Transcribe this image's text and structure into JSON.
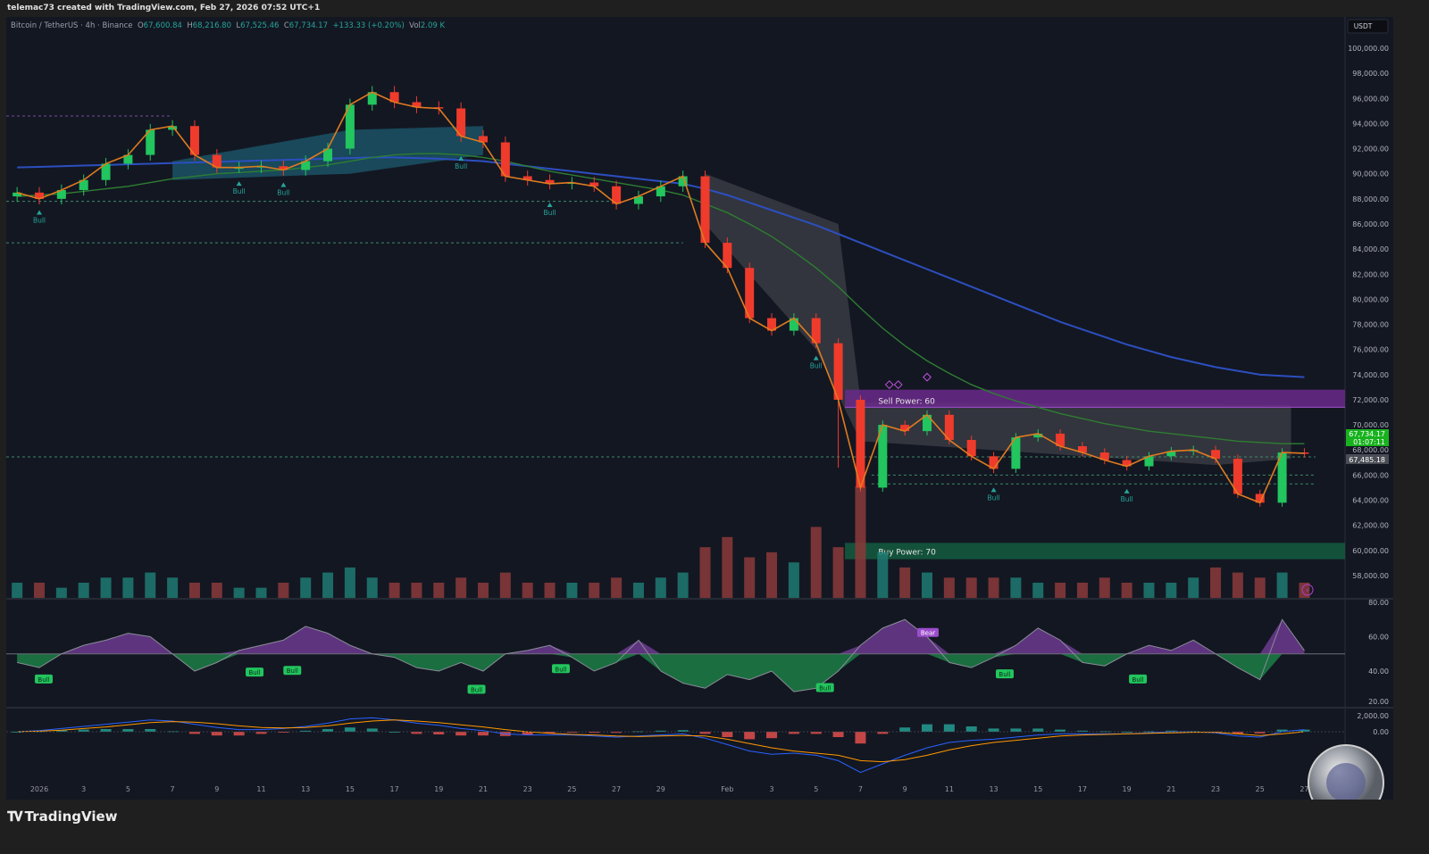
{
  "header": {
    "credit": "telemac73 created with TradingView.com, Feb 27, 2026 07:52 UTC+1"
  },
  "legend": {
    "symbol": "Bitcoin / TetherUS · 4h · Binance",
    "open_label": "O",
    "open": "67,600.84",
    "high_label": "H",
    "high": "68,216.80",
    "low_label": "L",
    "low": "67,525.46",
    "close_label": "C",
    "close": "67,734.17",
    "change": "+133.33 (+0.20%)",
    "vol_label": "Vol",
    "vol": "2.09 K"
  },
  "currency_button": "USDT",
  "price_tags": {
    "last": "67,734.17",
    "countdown": "01:07:11",
    "other": "67,485.18"
  },
  "footer": {
    "brand": "TradingView"
  },
  "colors": {
    "background": "#131722",
    "up": "#26a69a",
    "down": "#ef5350",
    "ma_long": "#2c4fbf",
    "ma_mid": "#2e7d32",
    "ema": "#e07b20",
    "rsi_up": "#9c4dcc",
    "rsi_down": "#22c55e",
    "sell_zone": "#6a2a8a",
    "buy_zone": "#145c40"
  },
  "chart_data": {
    "type": "candlestick",
    "title": "",
    "x_ticks": [
      "2026",
      "3",
      "5",
      "7",
      "9",
      "11",
      "13",
      "15",
      "17",
      "19",
      "21",
      "23",
      "25",
      "27",
      "29",
      "Feb",
      "3",
      "5",
      "7",
      "9",
      "11",
      "13",
      "15",
      "17",
      "19",
      "21",
      "23",
      "25",
      "27"
    ],
    "y_ticks": [
      "100,000.00",
      "98,000.00",
      "96,000.00",
      "94,000.00",
      "92,000.00",
      "90,000.00",
      "88,000.00",
      "86,000.00",
      "84,000.00",
      "82,000.00",
      "80,000.00",
      "78,000.00",
      "76,000.00",
      "74,000.00",
      "72,000.00",
      "70,000.00",
      "68,000.00",
      "66,000.00",
      "64,000.00",
      "62,000.00",
      "60,000.00",
      "58,000.00"
    ],
    "ylim": [
      57000,
      101000
    ],
    "dates": [
      "2025-12-31",
      "2026-01-01",
      "2026-01-02",
      "2026-01-03",
      "2026-01-04",
      "2026-01-05",
      "2026-01-06",
      "2026-01-07",
      "2026-01-08",
      "2026-01-09",
      "2026-01-10",
      "2026-01-11",
      "2026-01-12",
      "2026-01-13",
      "2026-01-14",
      "2026-01-15",
      "2026-01-16",
      "2026-01-17",
      "2026-01-18",
      "2026-01-19",
      "2026-01-20",
      "2026-01-21",
      "2026-01-22",
      "2026-01-23",
      "2026-01-24",
      "2026-01-25",
      "2026-01-26",
      "2026-01-27",
      "2026-01-28",
      "2026-01-29",
      "2026-01-30",
      "2026-01-31",
      "2026-02-01",
      "2026-02-02",
      "2026-02-03",
      "2026-02-04",
      "2026-02-05",
      "2026-02-06",
      "2026-02-07",
      "2026-02-08",
      "2026-02-09",
      "2026-02-10",
      "2026-02-11",
      "2026-02-12",
      "2026-02-13",
      "2026-02-14",
      "2026-02-15",
      "2026-02-16",
      "2026-02-17",
      "2026-02-18",
      "2026-02-19",
      "2026-02-20",
      "2026-02-21",
      "2026-02-22",
      "2026-02-23",
      "2026-02-24",
      "2026-02-25",
      "2026-02-26",
      "2026-02-27"
    ],
    "close": [
      88500,
      88000,
      88700,
      89500,
      90800,
      91500,
      93500,
      93800,
      91500,
      90500,
      90500,
      90600,
      90300,
      91000,
      92000,
      95500,
      96500,
      95700,
      95300,
      95200,
      93000,
      92500,
      89800,
      89500,
      89200,
      89300,
      89000,
      87600,
      88200,
      89000,
      89800,
      84500,
      82500,
      78500,
      77500,
      78500,
      76500,
      72000,
      65000,
      70000,
      69500,
      70800,
      68800,
      67500,
      66500,
      69000,
      69300,
      68300,
      67800,
      67200,
      66700,
      67500,
      67900,
      68000,
      67300,
      64500,
      63800,
      67800,
      67734.17
    ],
    "ma_long": [
      90500,
      90550,
      90600,
      90650,
      90700,
      90750,
      90800,
      90850,
      90900,
      90950,
      91000,
      91050,
      91100,
      91150,
      91200,
      91250,
      91300,
      91300,
      91250,
      91200,
      91100,
      91000,
      90800,
      90600,
      90400,
      90200,
      90000,
      89800,
      89600,
      89400,
      89200,
      88800,
      88300,
      87700,
      87100,
      86500,
      85900,
      85200,
      84500,
      83800,
      83100,
      82400,
      81700,
      81000,
      80300,
      79600,
      78900,
      78200,
      77600,
      77000,
      76400,
      75900,
      75400,
      75000,
      74600,
      74300,
      74000,
      73900,
      73800
    ],
    "ma_mid": [
      88200,
      88300,
      88400,
      88600,
      88800,
      89000,
      89300,
      89600,
      89800,
      90000,
      90100,
      90200,
      90300,
      90500,
      90700,
      91000,
      91300,
      91500,
      91600,
      91600,
      91500,
      91300,
      91000,
      90600,
      90200,
      89900,
      89600,
      89300,
      89000,
      88700,
      88300,
      87600,
      86900,
      86000,
      85000,
      83800,
      82500,
      81000,
      79300,
      77700,
      76300,
      75100,
      74100,
      73200,
      72500,
      71900,
      71400,
      70900,
      70500,
      70100,
      69800,
      69500,
      69300,
      69100,
      68900,
      68700,
      68600,
      68500,
      68500
    ],
    "volume": [
      3,
      3,
      2,
      3,
      4,
      4,
      5,
      4,
      3,
      3,
      2,
      2,
      3,
      4,
      5,
      6,
      4,
      3,
      3,
      3,
      4,
      3,
      5,
      3,
      3,
      3,
      3,
      4,
      3,
      4,
      5,
      10,
      12,
      8,
      9,
      7,
      14,
      10,
      22,
      9,
      6,
      5,
      4,
      4,
      4,
      4,
      3,
      3,
      3,
      4,
      3,
      3,
      3,
      4,
      6,
      5,
      4,
      5,
      3
    ],
    "rsi": [
      45,
      42,
      50,
      55,
      58,
      62,
      60,
      50,
      40,
      45,
      52,
      55,
      58,
      66,
      62,
      55,
      50,
      48,
      42,
      40,
      45,
      40,
      50,
      52,
      55,
      48,
      40,
      45,
      58,
      40,
      33,
      30,
      38,
      35,
      40,
      28,
      30,
      40,
      55,
      65,
      70,
      60,
      45,
      42,
      48,
      55,
      65,
      58,
      45,
      43,
      50,
      55,
      52,
      58,
      50,
      42,
      35,
      70,
      52
    ],
    "rsi_ticks": [
      "80.00",
      "60.00",
      "40.00",
      "20.00"
    ],
    "macd": [
      0,
      100,
      300,
      500,
      700,
      900,
      1100,
      1000,
      700,
      400,
      200,
      200,
      300,
      500,
      800,
      1200,
      1300,
      1100,
      800,
      600,
      300,
      100,
      -200,
      -300,
      -300,
      -300,
      -400,
      -500,
      -400,
      -300,
      -200,
      -600,
      -1200,
      -1800,
      -2100,
      -2000,
      -2200,
      -2700,
      -3800,
      -3000,
      -2200,
      -1500,
      -1000,
      -800,
      -700,
      -500,
      -300,
      -200,
      -200,
      -200,
      -200,
      -100,
      0,
      0,
      -100,
      -400,
      -500,
      0,
      200
    ],
    "macd_signal": [
      0,
      50,
      150,
      300,
      450,
      650,
      850,
      950,
      900,
      750,
      550,
      400,
      350,
      400,
      550,
      800,
      1000,
      1100,
      1000,
      850,
      650,
      450,
      200,
      0,
      -150,
      -250,
      -300,
      -400,
      -450,
      -400,
      -350,
      -400,
      -700,
      -1100,
      -1500,
      -1800,
      -2000,
      -2200,
      -2700,
      -2800,
      -2600,
      -2200,
      -1700,
      -1300,
      -1000,
      -800,
      -600,
      -400,
      -300,
      -250,
      -200,
      -150,
      -100,
      -50,
      -50,
      -200,
      -350,
      -200,
      0
    ],
    "macd_ticks": [
      "2,000.00",
      "0.00"
    ],
    "annotations": {
      "bull_labels": [
        {
          "date": "2026-01-01",
          "price": 87600,
          "text": "Bull"
        },
        {
          "date": "2026-01-10",
          "price": 89900,
          "text": "Bull"
        },
        {
          "date": "2026-01-12",
          "price": 89800,
          "text": "Bull"
        },
        {
          "date": "2026-01-20",
          "price": 91900,
          "text": "Bull"
        },
        {
          "date": "2026-01-24",
          "price": 88200,
          "text": "Bull"
        },
        {
          "date": "2026-02-05",
          "price": 76000,
          "text": "Bull"
        },
        {
          "date": "2026-02-13",
          "price": 65500,
          "text": "Bull"
        },
        {
          "date": "2026-02-19",
          "price": 65400,
          "text": "Bull"
        }
      ],
      "rsi_bull_labels": [
        "Bull",
        "Bull",
        "Bull",
        "Bull",
        "Bull",
        "Bull",
        "Bull",
        "Bull"
      ],
      "rsi_bear_label": "Bear",
      "sell_zone": {
        "label": "Sell Power: 60",
        "top": 72800,
        "bottom": 71400
      },
      "buy_zone": {
        "label": "Buy Power: 70",
        "top": 60600,
        "bottom": 59300
      },
      "levels": [
        94600,
        87800,
        84500,
        67450,
        66000,
        65300
      ]
    }
  }
}
